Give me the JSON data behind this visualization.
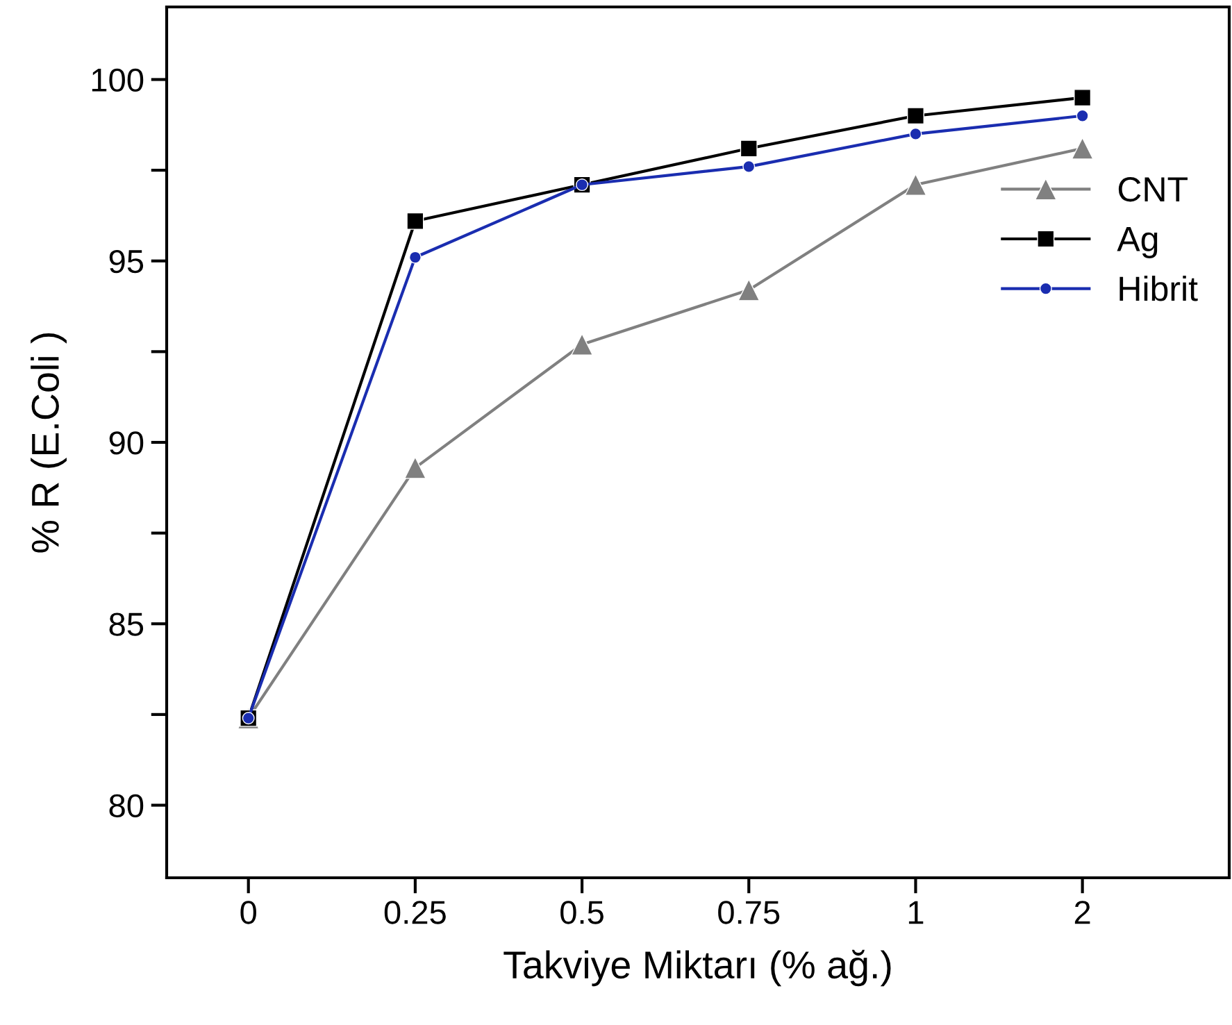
{
  "chart_data": {
    "type": "line",
    "xlabel": "Takviye Miktarı (% ağ.)",
    "ylabel": "% R (E.Coli )",
    "categories": [
      "0",
      "0.25",
      "0.5",
      "0.75",
      "1",
      "2"
    ],
    "series": [
      {
        "name": "CNT",
        "color": "#808080",
        "marker": "triangle",
        "values": [
          82.4,
          89.3,
          92.7,
          94.2,
          97.1,
          98.1
        ]
      },
      {
        "name": "Ag",
        "color": "#000000",
        "marker": "square",
        "values": [
          82.4,
          96.1,
          97.1,
          98.1,
          99.0,
          99.5
        ]
      },
      {
        "name": "Hibrit",
        "color": "#1a2db0",
        "marker": "circle",
        "values": [
          82.4,
          95.1,
          97.1,
          97.6,
          98.5,
          99.0
        ]
      }
    ],
    "ylim": [
      78,
      102
    ],
    "yticks": [
      80,
      {
        "value": 82.5,
        "label": null
      },
      85,
      {
        "value": 87.5,
        "label": null
      },
      90,
      {
        "value": 92.5,
        "label": null
      },
      95,
      {
        "value": 97.5,
        "label": null
      },
      100
    ],
    "legend": "right",
    "grid": false,
    "line_style": "solid"
  }
}
